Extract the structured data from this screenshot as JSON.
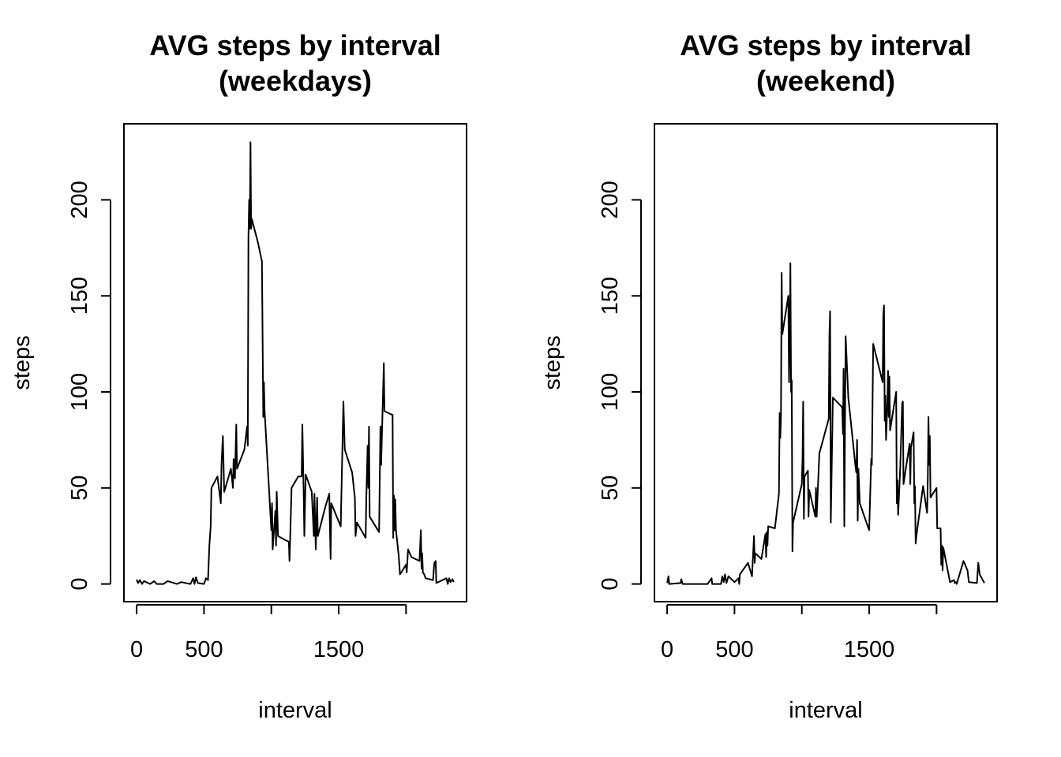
{
  "chart_data": [
    {
      "type": "line",
      "title": [
        "AVG steps by interval",
        "(weekdays)"
      ],
      "xlabel": "interval",
      "ylabel": "steps",
      "xlim": [
        -94.2,
        2449.2
      ],
      "ylim": [
        -9.2,
        239.6
      ],
      "xticks": [
        0,
        500,
        {
          "value": 1000,
          "label": null
        },
        1500,
        {
          "value": 2000,
          "label": null
        }
      ],
      "yticks": [
        0,
        50,
        100,
        150,
        200
      ],
      "series": [
        {
          "name": "weekdays",
          "color": "#000000",
          "x": [
            0,
            10,
            25,
            40,
            55,
            100,
            130,
            150,
            200,
            230,
            300,
            330,
            400,
            420,
            430,
            440,
            455,
            500,
            515,
            530,
            540,
            550,
            555,
            600,
            625,
            630,
            640,
            650,
            700,
            715,
            720,
            730,
            740,
            745,
            800,
            820,
            825,
            830,
            835,
            840,
            845,
            850,
            855,
            900,
            930,
            940,
            945,
            950,
            1000,
            1005,
            1010,
            1030,
            1035,
            1040,
            1050,
            1100,
            1130,
            1135,
            1140,
            1150,
            1200,
            1225,
            1230,
            1240,
            1245,
            1255,
            1300,
            1315,
            1320,
            1330,
            1340,
            1345,
            1400,
            1430,
            1435,
            1440,
            1445,
            1515,
            1535,
            1545,
            1600,
            1620,
            1625,
            1635,
            1700,
            1705,
            1715,
            1720,
            1725,
            1730,
            1800,
            1810,
            1815,
            1835,
            1840,
            1900,
            1905,
            1910,
            1915,
            1920,
            1925,
            1945,
            1955,
            2000,
            2005,
            2015,
            2040,
            2100,
            2110,
            2115,
            2120,
            2125,
            2135,
            2145,
            2200,
            2210,
            2220,
            2225,
            2300,
            2310,
            2320,
            2330,
            2345,
            2355
          ],
          "values": [
            2.3,
            0.5,
            2,
            0,
            1.5,
            0,
            1.5,
            0,
            0,
            1.5,
            0,
            1,
            0,
            3,
            0,
            3.5,
            0.5,
            0,
            3,
            2,
            20,
            30,
            50,
            56,
            42,
            62,
            77,
            48,
            60,
            50,
            65,
            55,
            83,
            60,
            70,
            82,
            72,
            180,
            200,
            185,
            230,
            185,
            190,
            178,
            168,
            87,
            105,
            90,
            28,
            42,
            18,
            38,
            20,
            48,
            25,
            23,
            22,
            12,
            24,
            50,
            56,
            56,
            83,
            47,
            25,
            57,
            48,
            25,
            47,
            18,
            45,
            25,
            40,
            47,
            30,
            13,
            42,
            30,
            95,
            70,
            58,
            45,
            25,
            32,
            24,
            45,
            72,
            50,
            82,
            35,
            27,
            82,
            62,
            115,
            90,
            88,
            24,
            46,
            28,
            44,
            28,
            15,
            5,
            10,
            6,
            18,
            14,
            12,
            28,
            8,
            16,
            6,
            5,
            3,
            2,
            11,
            12,
            0.5,
            3,
            0,
            3,
            1,
            2.5,
            1
          ]
        }
      ]
    },
    {
      "type": "line",
      "title": [
        "AVG steps by interval",
        "(weekend)"
      ],
      "xlabel": "interval",
      "ylabel": "steps",
      "xlim": [
        -94.2,
        2449.2
      ],
      "ylim": [
        -9.2,
        239.6
      ],
      "xticks": [
        0,
        500,
        {
          "value": 1000,
          "label": null
        },
        1500,
        {
          "value": 2000,
          "label": null
        }
      ],
      "yticks": [
        0,
        50,
        100,
        150,
        200
      ],
      "series": [
        {
          "name": "weekend",
          "color": "#000000",
          "x": [
            0,
            10,
            15,
            100,
            105,
            115,
            200,
            300,
            330,
            335,
            400,
            410,
            420,
            430,
            440,
            455,
            500,
            530,
            535,
            540,
            600,
            630,
            645,
            650,
            655,
            700,
            730,
            735,
            740,
            745,
            750,
            800,
            830,
            835,
            840,
            845,
            850,
            855,
            900,
            905,
            910,
            915,
            920,
            925,
            930,
            935,
            1000,
            1005,
            1010,
            1015,
            1020,
            1045,
            1050,
            1055,
            1100,
            1105,
            1110,
            1130,
            1200,
            1205,
            1210,
            1215,
            1230,
            1300,
            1305,
            1310,
            1315,
            1325,
            1345,
            1400,
            1405,
            1410,
            1415,
            1420,
            1430,
            1500,
            1515,
            1520,
            1530,
            1600,
            1605,
            1610,
            1615,
            1620,
            1625,
            1635,
            1640,
            1645,
            1650,
            1655,
            1700,
            1705,
            1710,
            1715,
            1730,
            1745,
            1750,
            1755,
            1800,
            1805,
            1810,
            1830,
            1835,
            1840,
            1845,
            1850,
            1900,
            1930,
            1935,
            1940,
            1945,
            1950,
            1955,
            2000,
            2005,
            2030,
            2035,
            2040,
            2045,
            2050,
            2100,
            2130,
            2135,
            2145,
            2150,
            2200,
            2230,
            2240,
            2300,
            2310,
            2320,
            2355
          ],
          "values": [
            0.5,
            4,
            0,
            0.5,
            2.5,
            0,
            0,
            0,
            3,
            0,
            0,
            4,
            1,
            5,
            0.5,
            4,
            1,
            3,
            0,
            5,
            11,
            4,
            25,
            11,
            16,
            13,
            26,
            14,
            27,
            20,
            30,
            29,
            47,
            89,
            76,
            88,
            162,
            130,
            150,
            105,
            130,
            167,
            100,
            106,
            17,
            32,
            52,
            66,
            95,
            34,
            56,
            59,
            35,
            49,
            35,
            50,
            35,
            68,
            86,
            130,
            142,
            32,
            97,
            92,
            78,
            112,
            30,
            129,
            97,
            60,
            58,
            75,
            33,
            60,
            42,
            28,
            65,
            62,
            125,
            105,
            140,
            145,
            85,
            98,
            75,
            95,
            111,
            87,
            108,
            80,
            100,
            42,
            54,
            36,
            60,
            94,
            95,
            52,
            73,
            52,
            71,
            79,
            42,
            51,
            21,
            25,
            51,
            37,
            55,
            87,
            62,
            77,
            45,
            50,
            29,
            29,
            10,
            20,
            7,
            19,
            1,
            2,
            0.5,
            1,
            0,
            12,
            7,
            1,
            0.5,
            11,
            5,
            0.5
          ]
        }
      ]
    }
  ]
}
